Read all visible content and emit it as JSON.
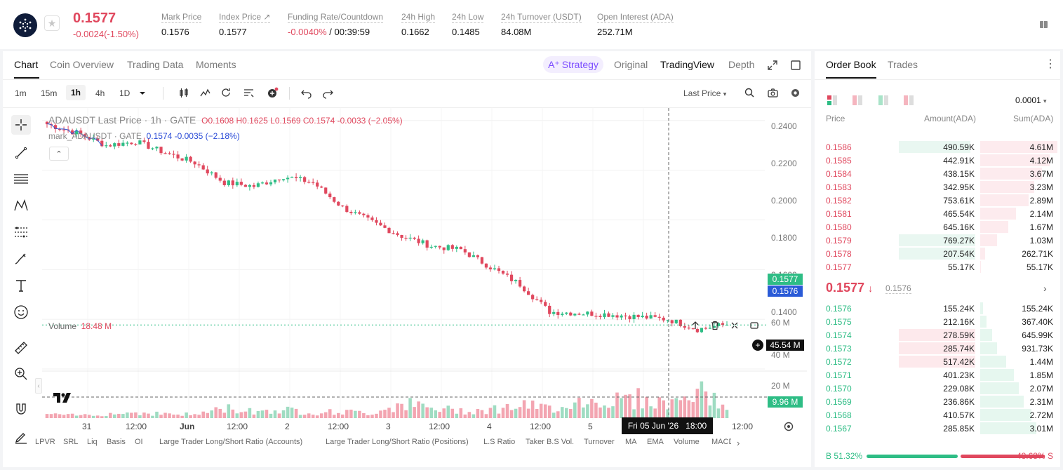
{
  "ticker": {
    "last_price": "0.1577",
    "change": "-0.0024(-1.50%)",
    "stats": [
      {
        "label": "Mark Price",
        "value": "0.1576"
      },
      {
        "label": "Index Price ↗",
        "value": "0.1577"
      },
      {
        "label": "Funding Rate/Countdown",
        "value_neg": "-0.0040%",
        "value": " / 00:39:59"
      },
      {
        "label": "24h High",
        "value": "0.1662"
      },
      {
        "label": "24h Low",
        "value": "0.1485"
      },
      {
        "label": "24h Turnover (USDT)",
        "value": "84.08M"
      },
      {
        "label": "Open Interest (ADA)",
        "value": "252.71M"
      }
    ]
  },
  "chart_tabs": [
    "Chart",
    "Coin Overview",
    "Trading Data",
    "Moments"
  ],
  "view_modes": {
    "strategy": "Strategy",
    "original": "Original",
    "tradingview": "TradingView",
    "depth": "Depth"
  },
  "intervals": [
    "1m",
    "15m",
    "1h",
    "4h",
    "1D"
  ],
  "active_interval": "1h",
  "price_type": "Last Price",
  "legend": {
    "title": "ADAUSDT Last Price · 1h · GATE",
    "ohlc": "O0.1608  H0.1625  L0.1569  C0.1574  -0.0033 (−2.05%)",
    "mark_title": "mark_ADAUSDT · GATE",
    "mark_values": "0.1574  -0.0035 (−2.18%)"
  },
  "volume_label": {
    "name": "Volume",
    "value": "18.48 M"
  },
  "price_tags": {
    "last": "0.1577",
    "mark": "0.1576",
    "crosshair_volume": "45.54 M",
    "current_volume": "9.96 M"
  },
  "crosshair_time": {
    "date": "Fri 05 Jun '26",
    "time": "18:00"
  },
  "indicators": [
    "LPVR",
    "SRL",
    "Liq",
    "Basis",
    "OI",
    "Large Trader Long/Short Ratio (Accounts)",
    "Large Trader Long/Short Ratio (Positions)",
    "L.S Ratio",
    "Taker B.S Vol.",
    "Turnover",
    "MA",
    "EMA",
    "Volume",
    "MACD"
  ],
  "chart_data": {
    "type": "candlestick",
    "symbol": "ADAUSDT",
    "interval": "1h",
    "y_ticks": [
      "0.2400",
      "0.2200",
      "0.2000",
      "0.1800",
      "0.1600",
      "0.1400"
    ],
    "ylim": [
      0.14,
      0.245
    ],
    "volume_ticks": [
      "60 M",
      "40 M",
      "20 M"
    ],
    "x_ticks": [
      "31",
      "12:00",
      "Jun",
      "12:00",
      "2",
      "12:00",
      "3",
      "12:00",
      "4",
      "12:00",
      "5",
      "12:00"
    ],
    "close_trend": [
      0.2385,
      0.235,
      0.23,
      0.2315,
      0.227,
      0.223,
      0.215,
      0.2135,
      0.2175,
      0.215,
      0.205,
      0.199,
      0.1935,
      0.1895,
      0.188,
      0.181,
      0.174,
      0.163,
      0.1625,
      0.162,
      0.161,
      0.16,
      0.156,
      0.158
    ],
    "volume_trend": [
      5,
      4,
      6,
      8,
      6,
      5,
      14,
      10,
      12,
      8,
      9,
      7,
      22,
      13,
      11,
      12,
      18,
      14,
      24,
      25,
      28,
      20,
      38,
      18
    ]
  },
  "order_book": {
    "tabs": [
      "Order Book",
      "Trades"
    ],
    "precision": "0.0001",
    "headers": {
      "price": "Price",
      "amount": "Amount(ADA)",
      "sum": "Sum(ADA)"
    },
    "asks": [
      {
        "price": "0.1586",
        "amount": "490.59K",
        "sum": "4.61M",
        "amt_frac": 0.65,
        "sum_frac": 1.0
      },
      {
        "price": "0.1585",
        "amount": "442.91K",
        "sum": "4.12M",
        "amt_frac": 0,
        "sum_frac": 0.9
      },
      {
        "price": "0.1584",
        "amount": "438.15K",
        "sum": "3.67M",
        "amt_frac": 0,
        "sum_frac": 0.8
      },
      {
        "price": "0.1583",
        "amount": "342.95K",
        "sum": "3.23M",
        "amt_frac": 0,
        "sum_frac": 0.7
      },
      {
        "price": "0.1582",
        "amount": "753.61K",
        "sum": "2.89M",
        "amt_frac": 0,
        "sum_frac": 0.63
      },
      {
        "price": "0.1581",
        "amount": "465.54K",
        "sum": "2.14M",
        "amt_frac": 0,
        "sum_frac": 0.46
      },
      {
        "price": "0.1580",
        "amount": "645.16K",
        "sum": "1.67M",
        "amt_frac": 0,
        "sum_frac": 0.36
      },
      {
        "price": "0.1579",
        "amount": "769.27K",
        "sum": "1.03M",
        "amt_frac": 0.72,
        "sum_frac": 0.22
      },
      {
        "price": "0.1578",
        "amount": "207.54K",
        "sum": "262.71K",
        "amt_frac": 0.72,
        "sum_frac": 0.06
      },
      {
        "price": "0.1577",
        "amount": "55.17K",
        "sum": "55.17K",
        "amt_frac": 0,
        "sum_frac": 0.01
      }
    ],
    "mid": {
      "price": "0.1577",
      "index": "0.1576"
    },
    "bids": [
      {
        "price": "0.1576",
        "amount": "155.24K",
        "sum": "155.24K",
        "amt_frac": 0,
        "sum_frac": 0.04
      },
      {
        "price": "0.1575",
        "amount": "212.16K",
        "sum": "367.40K",
        "amt_frac": 0,
        "sum_frac": 0.08
      },
      {
        "price": "0.1574",
        "amount": "278.59K",
        "sum": "645.99K",
        "amt_frac": 0.72,
        "sum_frac": 0.15
      },
      {
        "price": "0.1573",
        "amount": "285.74K",
        "sum": "931.73K",
        "amt_frac": 0.72,
        "sum_frac": 0.22
      },
      {
        "price": "0.1572",
        "amount": "517.42K",
        "sum": "1.44M",
        "amt_frac": 0.72,
        "sum_frac": 0.34
      },
      {
        "price": "0.1571",
        "amount": "401.23K",
        "sum": "1.85M",
        "amt_frac": 0,
        "sum_frac": 0.44
      },
      {
        "price": "0.1570",
        "amount": "229.08K",
        "sum": "2.07M",
        "amt_frac": 0,
        "sum_frac": 0.5
      },
      {
        "price": "0.1569",
        "amount": "236.86K",
        "sum": "2.31M",
        "amt_frac": 0,
        "sum_frac": 0.56
      },
      {
        "price": "0.1568",
        "amount": "410.57K",
        "sum": "2.72M",
        "amt_frac": 0,
        "sum_frac": 0.66
      },
      {
        "price": "0.1567",
        "amount": "285.85K",
        "sum": "3.01M",
        "amt_frac": 0,
        "sum_frac": 0.73
      }
    ],
    "buy_ratio": "51.32%",
    "sell_ratio": "48.68%",
    "buy_frac": 0.5132,
    "buy_letter": "B",
    "sell_letter": "S"
  },
  "colors": {
    "up": "#2ebd85",
    "down": "#e0485e",
    "accent": "#7c4dff",
    "mark_tag": "#2a5bd7"
  }
}
